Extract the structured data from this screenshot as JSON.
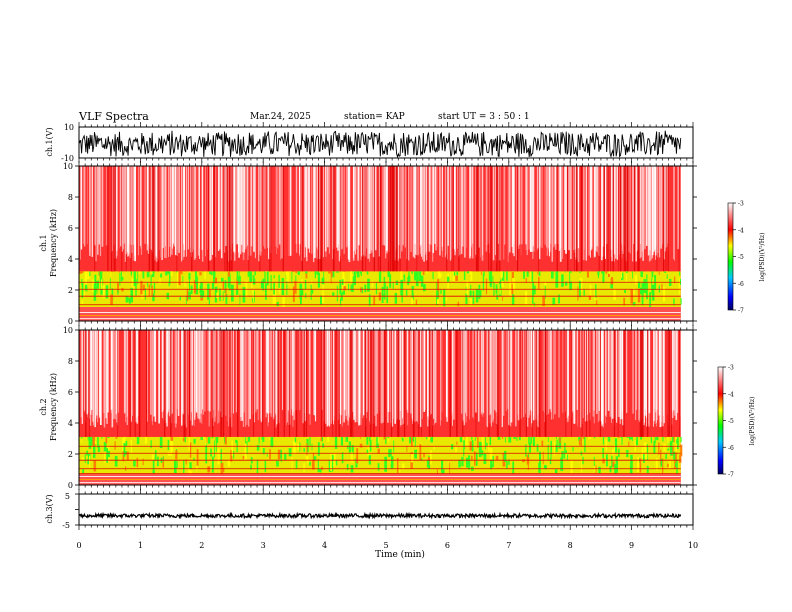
{
  "header": {
    "title": "VLF Spectra",
    "date": "Mar.24, 2025",
    "station": "station= KAP",
    "start": "start  UT  =   3  : 50 : 1"
  },
  "chart_data": [
    {
      "type": "line",
      "name": "ch1-waveform",
      "ylabel": "ch.1(V)",
      "ylim": [
        -10,
        10
      ],
      "yticks": [
        "10",
        "-10"
      ],
      "xlim": [
        0,
        10
      ],
      "data_x_max": 9.8,
      "description_range": [
        -10,
        10
      ]
    },
    {
      "type": "heatmap",
      "name": "ch1-spectrogram",
      "ylabel_line1": "ch.1",
      "ylabel_line2": "Frequency (kHz)",
      "ylim": [
        0,
        10
      ],
      "yticks": [
        "0",
        "2",
        "4",
        "6",
        "8",
        "10"
      ],
      "xlim": [
        0,
        10
      ],
      "data_x_max": 9.8,
      "colorbar": {
        "label": "log(PSD)(V²/Hz)",
        "range": [
          -7,
          -3
        ],
        "ticks": [
          "-3",
          "-4",
          "-5",
          "-6",
          "-7"
        ],
        "colors": [
          "#000080",
          "#0000ff",
          "#00c0ff",
          "#00ff00",
          "#ffff00",
          "#ff0000",
          "#ffffff"
        ]
      }
    },
    {
      "type": "heatmap",
      "name": "ch2-spectrogram",
      "ylabel_line1": "ch.2",
      "ylabel_line2": "Frequency (kHz)",
      "ylim": [
        0,
        10
      ],
      "yticks": [
        "0",
        "2",
        "4",
        "6",
        "8",
        "10"
      ],
      "xlim": [
        0,
        10
      ],
      "data_x_max": 9.8,
      "colorbar": {
        "label": "log(PSD)(V²/Hz)",
        "range": [
          -7,
          -3
        ],
        "ticks": [
          "-3",
          "-4",
          "-5",
          "-6",
          "-7"
        ],
        "colors": [
          "#000080",
          "#0000ff",
          "#00c0ff",
          "#00ff00",
          "#ffff00",
          "#ff0000",
          "#ffffff"
        ]
      }
    },
    {
      "type": "line",
      "name": "ch3-waveform",
      "ylabel": "ch.3(V)",
      "ylim": [
        -5,
        5
      ],
      "yticks": [
        "5",
        "-5"
      ],
      "xlim": [
        0,
        10
      ],
      "data_x_max": 9.8,
      "level": -2
    }
  ],
  "x_axis": {
    "label": "Time (min)",
    "ticks": [
      "0",
      "1",
      "2",
      "3",
      "4",
      "5",
      "6",
      "7",
      "8",
      "9",
      "10"
    ]
  }
}
